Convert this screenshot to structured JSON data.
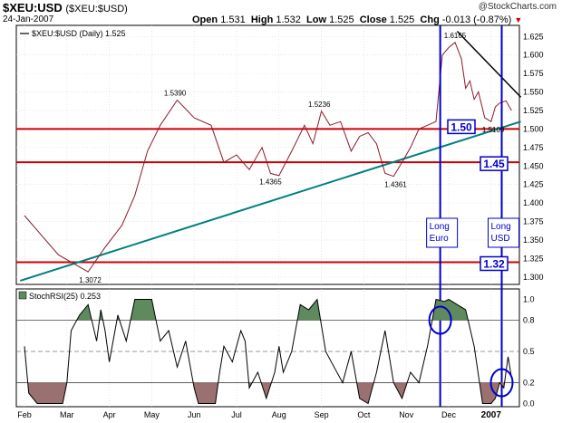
{
  "header": {
    "symbol": "$XEU:USD",
    "symbol_sub": "($XEU:$USD)",
    "date": "24-Jan-2007",
    "watermark": "@StockCharts.com",
    "open_label": "Open",
    "open": "1.531",
    "high_label": "High",
    "high": "1.532",
    "low_label": "Low",
    "low": "1.525",
    "close_label": "Close",
    "close": "1.525",
    "chg_label": "Chg",
    "chg": "-0.013 (-0.87%)",
    "chg_icon": "down-triangle-icon"
  },
  "colors": {
    "price_line": "#8b1a2b",
    "support": "#cc0000",
    "trendline": "#008080",
    "resistance": "#000000",
    "marker": "#0000cc",
    "rsi_fill_high": "#5e8a5e",
    "rsi_fill_low": "#9a7070",
    "label_text": "#0000cc"
  },
  "chart_data": [
    {
      "type": "line",
      "legend": "$XEU:$USD (Daily) 1.525",
      "x_ticks": [
        "Feb",
        "Mar",
        "Apr",
        "May",
        "Jun",
        "Jul",
        "Aug",
        "Sep",
        "Oct",
        "Nov",
        "Dec",
        "2007"
      ],
      "ylim": [
        1.29,
        1.64
      ],
      "yticks": [
        "1.625",
        "1.600",
        "1.575",
        "1.550",
        "1.525",
        "1.500",
        "1.475",
        "1.450",
        "1.425",
        "1.400",
        "1.375",
        "1.350",
        "1.325",
        "1.300"
      ],
      "grid": true,
      "series": [
        {
          "name": "$XEU:$USD",
          "x": [
            0.0,
            0.8,
            1.5,
            1.9,
            2.3,
            2.6,
            2.9,
            3.2,
            3.6,
            4.0,
            4.4,
            4.7,
            5.0,
            5.3,
            5.6,
            5.8,
            6.0,
            6.3,
            6.6,
            6.8,
            7.0,
            7.2,
            7.45,
            7.7,
            7.9,
            8.1,
            8.3,
            8.5,
            8.7,
            8.9,
            9.1,
            9.3,
            9.5,
            9.7,
            9.85,
            10.0,
            10.15,
            10.3,
            10.4,
            10.5,
            10.6,
            10.7,
            10.85,
            11.0,
            11.1,
            11.2,
            11.35,
            11.48
          ],
          "values": [
            1.383,
            1.33,
            1.307,
            1.34,
            1.37,
            1.41,
            1.47,
            1.505,
            1.539,
            1.515,
            1.505,
            1.455,
            1.465,
            1.445,
            1.475,
            1.44,
            1.437,
            1.47,
            1.505,
            1.48,
            1.524,
            1.505,
            1.51,
            1.47,
            1.49,
            1.495,
            1.48,
            1.44,
            1.436,
            1.455,
            1.475,
            1.5,
            1.505,
            1.51,
            1.6,
            1.61,
            1.617,
            1.595,
            1.555,
            1.565,
            1.54,
            1.55,
            1.515,
            1.51,
            1.53,
            1.535,
            1.538,
            1.525
          ]
        }
      ],
      "support_levels": [
        1.5,
        1.455,
        1.32
      ],
      "level_labels": [
        "1.50",
        "1.45",
        "1.32"
      ],
      "trendline": {
        "from": [
          -0.1,
          1.295
        ],
        "to": [
          11.7,
          1.51
        ]
      },
      "resistance_line": {
        "from": [
          10.2,
          1.632
        ],
        "to": [
          11.7,
          1.543
        ]
      },
      "value_labels": [
        {
          "x": 3.55,
          "y": 1.539,
          "text": "1.5390"
        },
        {
          "x": 6.95,
          "y": 1.524,
          "text": "1.5236"
        },
        {
          "x": 5.8,
          "y": 1.44,
          "text": "1.4365"
        },
        {
          "x": 8.75,
          "y": 1.436,
          "text": "1.4361"
        },
        {
          "x": 1.55,
          "y": 1.307,
          "text": "1.3072"
        },
        {
          "x": 10.15,
          "y": 1.617,
          "text": "1.6165"
        },
        {
          "x": 11.05,
          "y": 1.51,
          "text": "1.5109"
        }
      ],
      "events": [
        {
          "x": 9.8,
          "text": [
            "Long",
            "Euro"
          ]
        },
        {
          "x": 11.25,
          "text": [
            "Long",
            "USD"
          ]
        }
      ]
    },
    {
      "type": "line",
      "legend": "StochRSI(25) 0.253",
      "ylim": [
        -0.03,
        1.1
      ],
      "yticks": [
        "1.0",
        "0.8",
        "0.5",
        "0.2",
        "0.0"
      ],
      "reference_lines": [
        0.8,
        0.5,
        0.2
      ],
      "series": [
        {
          "name": "StochRSI(25)",
          "x": [
            0.0,
            0.1,
            0.3,
            0.5,
            0.7,
            0.9,
            1.0,
            1.1,
            1.3,
            1.5,
            1.7,
            1.8,
            1.9,
            2.0,
            2.2,
            2.4,
            2.6,
            2.8,
            3.0,
            3.2,
            3.4,
            3.6,
            3.8,
            4.0,
            4.1,
            4.3,
            4.5,
            4.6,
            4.7,
            4.9,
            5.1,
            5.2,
            5.3,
            5.5,
            5.7,
            5.9,
            6.0,
            6.1,
            6.3,
            6.5,
            6.7,
            6.9,
            7.1,
            7.3,
            7.5,
            7.7,
            7.9,
            8.1,
            8.3,
            8.5,
            8.7,
            8.9,
            9.1,
            9.3,
            9.5,
            9.7,
            9.9,
            10.0,
            10.2,
            10.4,
            10.6,
            10.8,
            11.0,
            11.1,
            11.2,
            11.3,
            11.4,
            11.48
          ],
          "values": [
            0.55,
            0.1,
            0.0,
            0.0,
            0.0,
            0.0,
            0.2,
            0.7,
            0.85,
            0.95,
            0.6,
            0.9,
            0.7,
            0.4,
            0.85,
            0.6,
            1.0,
            1.0,
            1.0,
            0.6,
            0.7,
            0.35,
            0.6,
            0.15,
            0.0,
            0.0,
            0.0,
            0.3,
            0.55,
            0.4,
            0.7,
            0.6,
            0.15,
            0.3,
            0.05,
            0.3,
            0.55,
            0.3,
            0.5,
            0.95,
            0.9,
            1.0,
            0.5,
            0.35,
            0.2,
            0.5,
            0.05,
            0.0,
            0.3,
            0.7,
            0.2,
            0.05,
            0.3,
            0.2,
            0.55,
            1.0,
            0.98,
            1.0,
            0.95,
            0.9,
            0.55,
            0.0,
            0.0,
            0.05,
            0.2,
            0.15,
            0.45,
            0.25
          ]
        }
      ],
      "markers": [
        {
          "x": 9.8,
          "y": 0.8
        },
        {
          "x": 11.25,
          "y": 0.2
        }
      ]
    }
  ]
}
